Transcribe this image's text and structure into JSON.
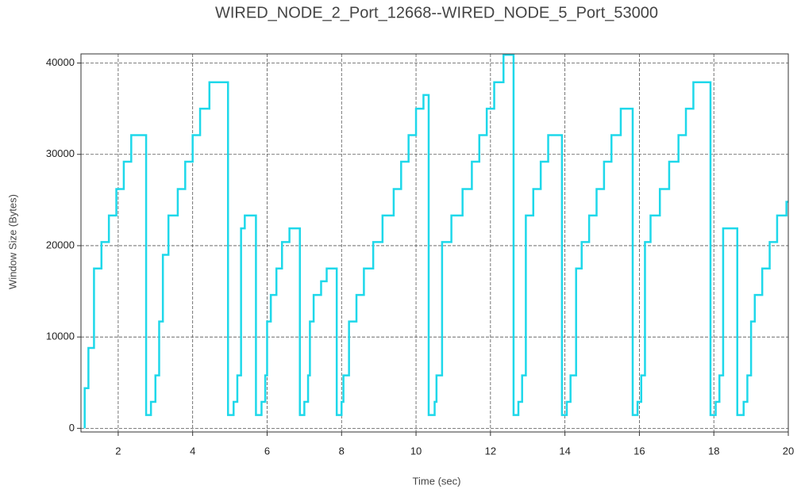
{
  "chart_data": {
    "type": "line",
    "title": "WIRED_NODE_2_Port_12668--WIRED_NODE_5_Port_53000",
    "x_label": "Time (sec)",
    "y_label": "Window Size (Bytes)",
    "xlim": [
      1,
      20
    ],
    "ylim": [
      -400,
      41000
    ],
    "xticks": [
      2,
      4,
      6,
      8,
      10,
      12,
      14,
      16,
      18,
      20
    ],
    "yticks": [
      0,
      10000,
      20000,
      30000,
      40000
    ],
    "grid": true,
    "series": [
      {
        "color": "#1ed8ea",
        "x": [
          1.1,
          1.1,
          1.2,
          1.2,
          1.35,
          1.35,
          1.55,
          1.55,
          1.75,
          1.75,
          1.95,
          1.95,
          2.15,
          2.15,
          2.35,
          2.35,
          2.75,
          2.75,
          2.88,
          2.88,
          3.0,
          3.0,
          3.1,
          3.1,
          3.2,
          3.2,
          3.35,
          3.35,
          3.6,
          3.6,
          3.8,
          3.8,
          4.0,
          4.0,
          4.2,
          4.2,
          4.45,
          4.45,
          4.95,
          4.95,
          5.1,
          5.1,
          5.2,
          5.2,
          5.3,
          5.3,
          5.4,
          5.4,
          5.7,
          5.7,
          5.85,
          5.85,
          5.95,
          5.95,
          6.0,
          6.0,
          6.1,
          6.1,
          6.25,
          6.25,
          6.4,
          6.4,
          6.6,
          6.6,
          6.88,
          6.88,
          7.0,
          7.0,
          7.1,
          7.1,
          7.15,
          7.15,
          7.25,
          7.25,
          7.45,
          7.45,
          7.6,
          7.6,
          7.87,
          7.87,
          8.0,
          8.0,
          8.05,
          8.05,
          8.2,
          8.2,
          8.4,
          8.4,
          8.6,
          8.6,
          8.85,
          8.85,
          9.1,
          9.1,
          9.4,
          9.4,
          9.6,
          9.6,
          9.8,
          9.8,
          10.0,
          10.0,
          10.2,
          10.2,
          10.34,
          10.34,
          10.5,
          10.5,
          10.55,
          10.55,
          10.7,
          10.7,
          10.95,
          10.95,
          11.25,
          11.25,
          11.5,
          11.5,
          11.7,
          11.7,
          11.9,
          11.9,
          12.1,
          12.1,
          12.35,
          12.35,
          12.62,
          12.62,
          12.75,
          12.75,
          12.85,
          12.85,
          12.95,
          12.95,
          13.15,
          13.15,
          13.35,
          13.35,
          13.55,
          13.55,
          13.92,
          13.92,
          14.05,
          14.05,
          14.15,
          14.15,
          14.3,
          14.3,
          14.45,
          14.45,
          14.65,
          14.65,
          14.85,
          14.85,
          15.05,
          15.05,
          15.25,
          15.25,
          15.5,
          15.5,
          15.82,
          15.82,
          15.95,
          15.95,
          16.05,
          16.05,
          16.15,
          16.15,
          16.3,
          16.3,
          16.55,
          16.55,
          16.8,
          16.8,
          17.05,
          17.05,
          17.25,
          17.25,
          17.45,
          17.45,
          17.91,
          17.91,
          18.05,
          18.05,
          18.15,
          18.15,
          18.25,
          18.25,
          18.63,
          18.63,
          18.8,
          18.8,
          18.9,
          18.9,
          19.0,
          19.0,
          19.1,
          19.1,
          19.3,
          19.3,
          19.5,
          19.5,
          19.7,
          19.7,
          19.95,
          19.95,
          20.0
        ],
        "values": [
          0,
          4400,
          4400,
          8800,
          8800,
          17500,
          17500,
          20400,
          20400,
          23300,
          23300,
          26200,
          26200,
          29200,
          29200,
          32100,
          32100,
          1460,
          1460,
          2900,
          2900,
          5800,
          5800,
          11700,
          11700,
          19000,
          19000,
          23300,
          23300,
          26200,
          26200,
          29200,
          29200,
          32100,
          32100,
          35000,
          35000,
          37900,
          37900,
          1460,
          1460,
          2900,
          2900,
          5800,
          5800,
          21900,
          21900,
          23300,
          23300,
          1460,
          1460,
          2900,
          2900,
          5800,
          5800,
          11700,
          11700,
          14600,
          14600,
          17500,
          17500,
          20400,
          20400,
          21900,
          21900,
          1460,
          1460,
          2900,
          2900,
          5800,
          5800,
          11700,
          11700,
          14600,
          14600,
          16100,
          16100,
          17500,
          17500,
          1460,
          1460,
          2900,
          2900,
          5800,
          5800,
          11700,
          11700,
          14600,
          14600,
          17500,
          17500,
          20400,
          20400,
          23300,
          23300,
          26200,
          26200,
          29200,
          29200,
          32100,
          32100,
          35000,
          35000,
          36500,
          36500,
          1460,
          1460,
          2900,
          2900,
          5800,
          5800,
          20400,
          20400,
          23300,
          23300,
          26200,
          26200,
          29200,
          29200,
          32100,
          32100,
          35000,
          35000,
          37900,
          37900,
          40900,
          40900,
          1460,
          1460,
          2900,
          2900,
          5800,
          5800,
          23300,
          23300,
          26200,
          26200,
          29200,
          29200,
          32100,
          32100,
          1460,
          1460,
          2900,
          2900,
          5800,
          5800,
          17500,
          17500,
          20400,
          20400,
          23300,
          23300,
          26200,
          26200,
          29200,
          29200,
          32100,
          32100,
          35000,
          35000,
          1460,
          1460,
          2900,
          2900,
          5800,
          5800,
          20400,
          20400,
          23300,
          23300,
          26200,
          26200,
          29200,
          29200,
          32100,
          32100,
          35000,
          35000,
          37900,
          37900,
          1460,
          1460,
          2900,
          2900,
          5800,
          5800,
          21900,
          21900,
          1460,
          1460,
          2900,
          2900,
          5800,
          5800,
          11700,
          11700,
          14600,
          14600,
          17500,
          17500,
          20400,
          20400,
          23300,
          23300,
          24800,
          24800
        ]
      }
    ]
  }
}
